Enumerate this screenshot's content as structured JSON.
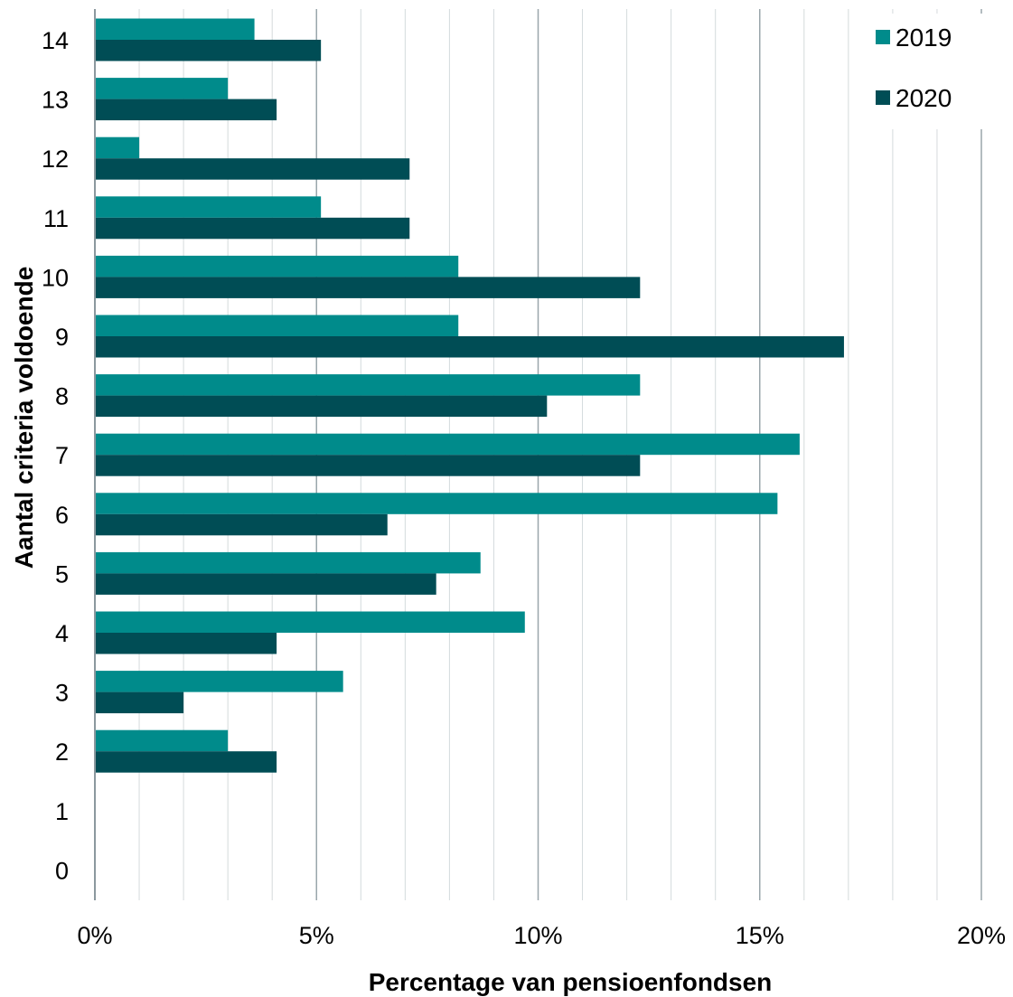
{
  "chart_data": {
    "type": "bar",
    "orientation": "horizontal",
    "title": "",
    "xlabel": "Percentage van pensioenfondsen",
    "ylabel": "Aantal criteria voldoende",
    "categories": [
      "0",
      "1",
      "2",
      "3",
      "4",
      "5",
      "6",
      "7",
      "8",
      "9",
      "10",
      "11",
      "12",
      "13",
      "14"
    ],
    "series": [
      {
        "name": "2019",
        "color": "#008B8B",
        "values": [
          0,
          0,
          3.0,
          5.6,
          9.7,
          8.7,
          15.4,
          15.9,
          12.3,
          8.2,
          8.2,
          5.1,
          1.0,
          3.0,
          3.6
        ]
      },
      {
        "name": "2020",
        "color": "#004D55",
        "values": [
          0,
          0,
          4.1,
          2.0,
          4.1,
          7.7,
          6.6,
          12.3,
          10.2,
          16.9,
          12.3,
          7.1,
          7.1,
          4.1,
          5.1
        ]
      }
    ],
    "xlim": [
      0,
      20
    ],
    "xticks": [
      "0%",
      "5%",
      "10%",
      "15%",
      "20%"
    ],
    "grid": "vertical",
    "legend_position": "top-right"
  }
}
